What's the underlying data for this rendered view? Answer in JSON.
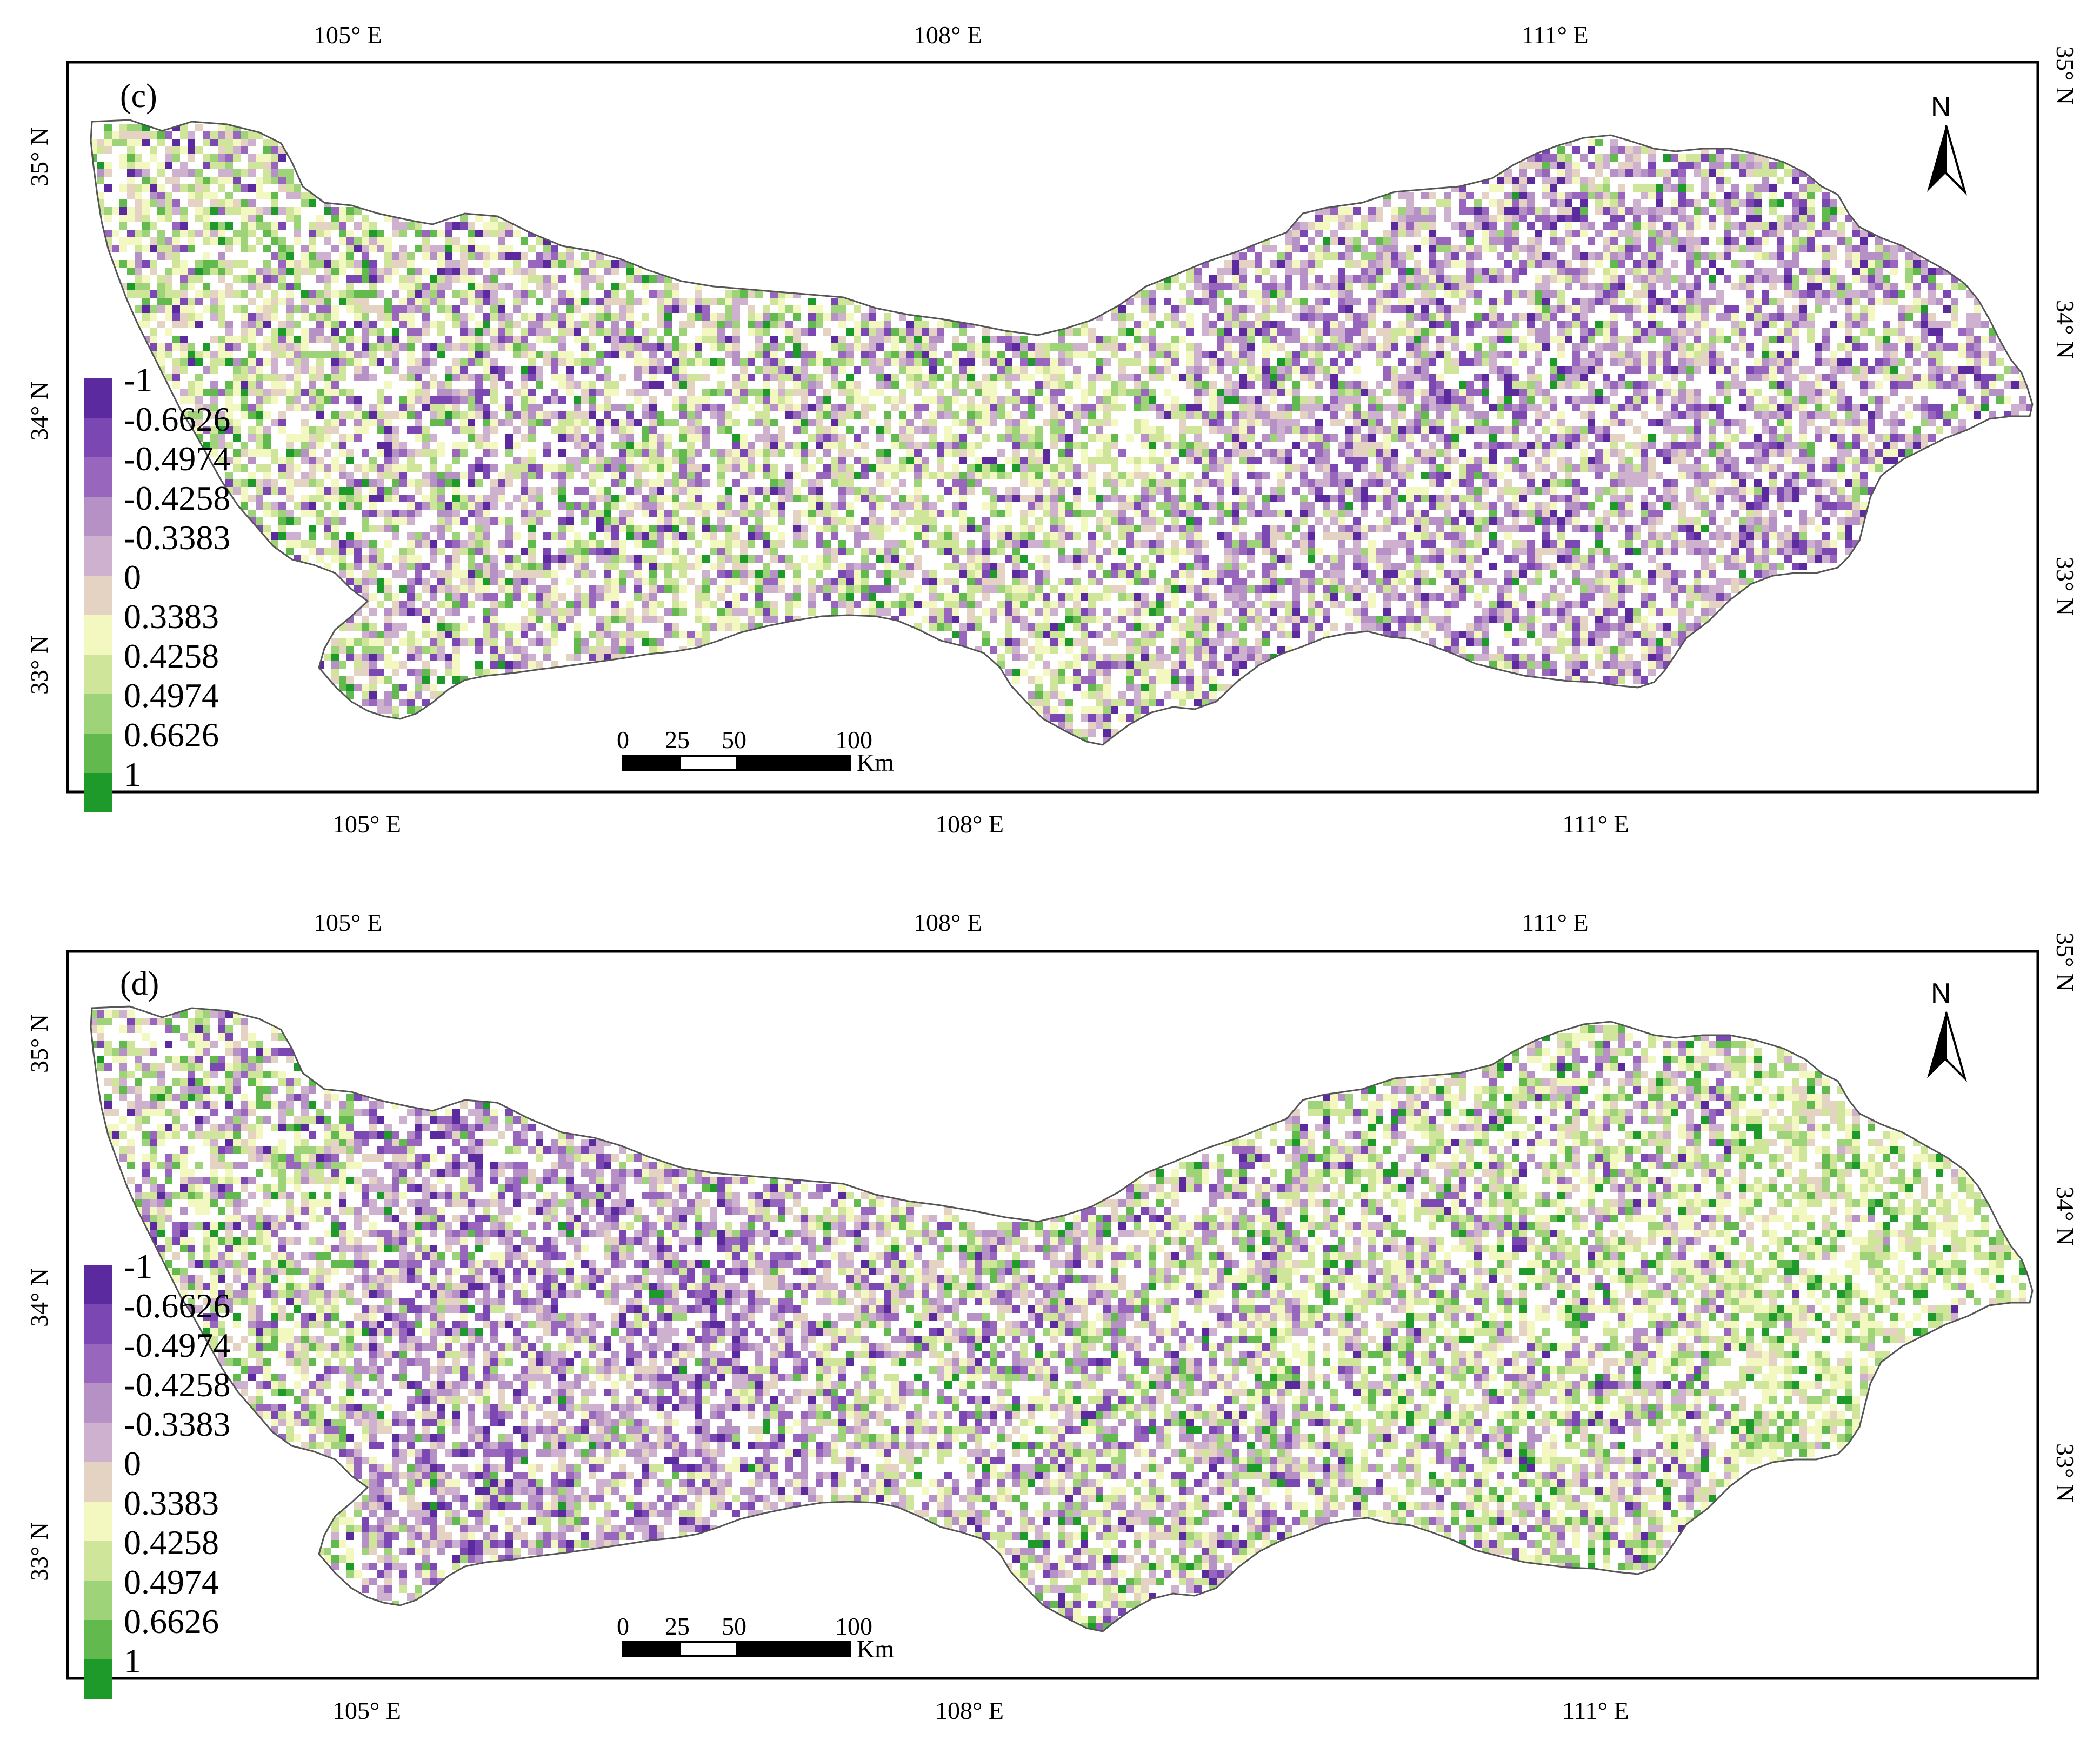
{
  "legend": {
    "values": [
      "-1",
      "-0.6626",
      "-0.4974",
      "-0.4258",
      "-0.3383",
      "0",
      "0.3383",
      "0.4258",
      "0.4974",
      "0.6626",
      "1"
    ],
    "colors": [
      "#5b2a9e",
      "#7b47b2",
      "#9866bd",
      "#b591c6",
      "#cdb1cf",
      "#e4d2c2",
      "#f3f7c0",
      "#cfe59a",
      "#9fd37a",
      "#62ba4e",
      "#1e9a2a"
    ]
  },
  "axes": {
    "lon_ticks": [
      "105° E",
      "108° E",
      "111° E"
    ],
    "lat_ticks": [
      "35° N",
      "34° N",
      "33° N"
    ]
  },
  "scale_bar": {
    "labels": [
      "0",
      "25",
      "50",
      "100"
    ],
    "unit": "Km"
  },
  "north_arrow": {
    "label": "N",
    "icon": "north-arrow-icon"
  },
  "panels": [
    {
      "label": "(c)"
    },
    {
      "label": "(d)"
    }
  ]
}
